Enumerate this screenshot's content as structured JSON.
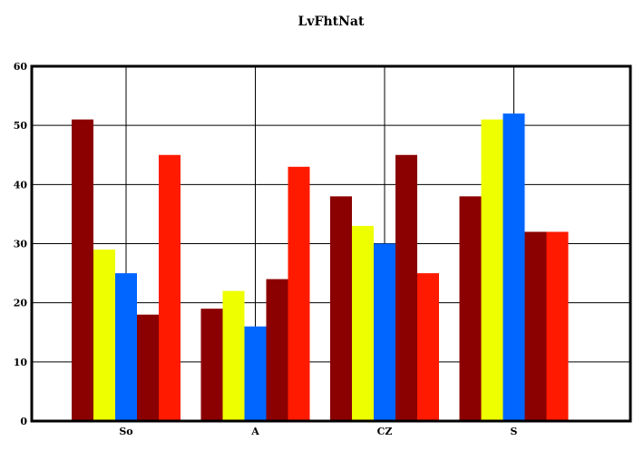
{
  "chart_data": {
    "type": "bar",
    "title": "LvFhtNat",
    "xlabel": "",
    "ylabel": "",
    "categories": [
      "So",
      "A",
      "CZ",
      "S"
    ],
    "ylim": [
      0,
      60
    ],
    "yticks": [
      0,
      10,
      20,
      30,
      40,
      50,
      60
    ],
    "grid": true,
    "series": [
      {
        "values": [
          51,
          19,
          38,
          38
        ],
        "color": "#8b0000"
      },
      {
        "values": [
          29,
          22,
          33,
          51
        ],
        "color": "#eeff00"
      },
      {
        "values": [
          25,
          16,
          30,
          52
        ],
        "color": "#0066ff"
      },
      {
        "values": [
          18,
          24,
          45,
          32
        ],
        "color": "#8b0000"
      },
      {
        "values": [
          45,
          43,
          25,
          32
        ],
        "color": "#ff1a00"
      }
    ]
  }
}
